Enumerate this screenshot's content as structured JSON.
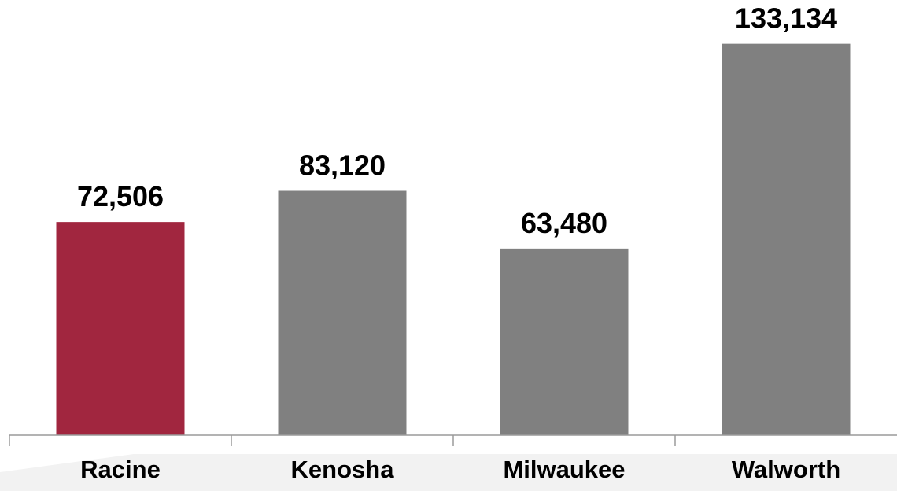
{
  "chart_data": {
    "type": "bar",
    "categories": [
      "Racine",
      "Kenosha",
      "Milwaukee",
      "Walworth"
    ],
    "values": [
      72506,
      83120,
      63480,
      133134
    ],
    "value_labels": [
      "72,506",
      "83,120",
      "63,480",
      "133,134"
    ],
    "title": "",
    "xlabel": "",
    "ylabel": "",
    "ylim": [
      0,
      140000
    ],
    "grid": false,
    "legend": "none",
    "colors": {
      "highlight": "#A1263F",
      "default": "#808080",
      "axis": "#9a9a9a"
    },
    "highlight_category": "Racine"
  }
}
